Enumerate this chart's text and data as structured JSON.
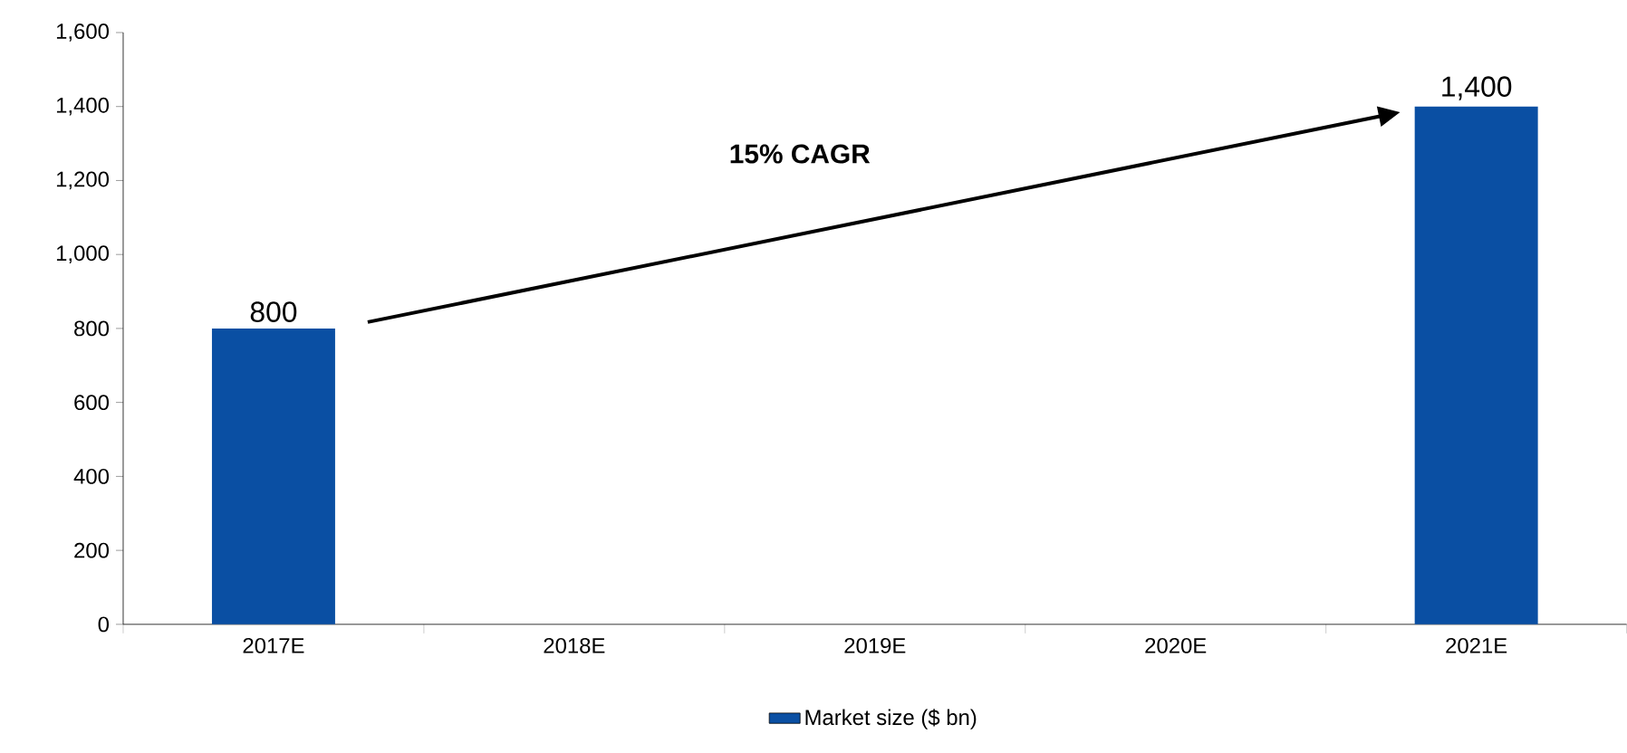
{
  "chart_data": {
    "type": "bar",
    "categories": [
      "2017E",
      "2018E",
      "2019E",
      "2020E",
      "2021E"
    ],
    "series": [
      {
        "name": "Market size ($ bn)",
        "color": "#0a4fa3",
        "values": [
          800,
          null,
          null,
          null,
          1400
        ],
        "value_labels": [
          "800",
          null,
          null,
          null,
          "1,400"
        ]
      }
    ],
    "ylim": [
      0,
      1600
    ],
    "yticks": [
      0,
      200,
      400,
      600,
      800,
      {
        "value": 1000,
        "label": "1,000"
      },
      {
        "value": 1200,
        "label": "1,200"
      },
      {
        "value": 1400,
        "label": "1,400"
      },
      {
        "value": 1600,
        "label": "1,600"
      }
    ],
    "annotations": [
      "15% CAGR"
    ],
    "grid": false,
    "legend": "bottom"
  }
}
